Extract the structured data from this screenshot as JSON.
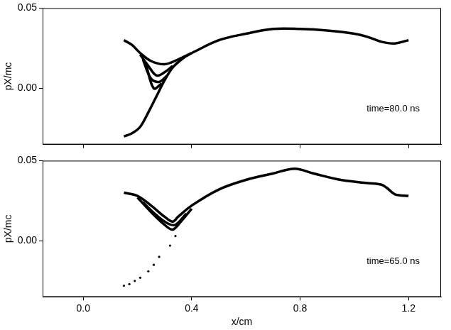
{
  "chart_data": [
    {
      "type": "scatter",
      "y_label": "pX/mc",
      "annotation": "time=80.0 ns",
      "xlim": [
        -0.15,
        1.32
      ],
      "xticks": [
        {
          "value": 0,
          "label": "0.0"
        },
        {
          "value": 0.4,
          "label": "0.4"
        },
        {
          "value": 0.8,
          "label": "0.8"
        },
        {
          "value": 1.2,
          "label": "1.2"
        }
      ],
      "ylim": [
        -0.035,
        0.05
      ],
      "yticks": [
        {
          "value": 0,
          "label": "0.00"
        },
        {
          "value": 0.05,
          "label": "0.05"
        }
      ],
      "grid": false,
      "tick_labels": "y",
      "series": [
        {
          "color": "#000000",
          "marker": "none",
          "line_style": "solid",
          "x": [
            0.15,
            0.18,
            0.21,
            0.25,
            0.3,
            0.35,
            0.4
          ],
          "values": [
            0.03,
            0.027,
            0.022,
            0.017,
            0.015,
            0.018,
            0.022
          ]
        },
        {
          "color": "#000000",
          "marker": "none",
          "line_style": "solid",
          "x": [
            0.15,
            0.18,
            0.21,
            0.24,
            0.27,
            0.3,
            0.33,
            0.37,
            0.4
          ],
          "values": [
            -0.03,
            -0.028,
            -0.024,
            -0.015,
            -0.005,
            0.005,
            0.013,
            0.019,
            0.022
          ]
        },
        {
          "color": "#000000",
          "marker": "none",
          "line_style": "solid",
          "x": [
            0.21,
            0.24,
            0.27,
            0.3,
            0.33
          ],
          "values": [
            0.021,
            0.014,
            0.008,
            0.01,
            0.014
          ]
        },
        {
          "color": "#000000",
          "marker": "none",
          "line_style": "solid",
          "x": [
            0.22,
            0.25,
            0.28,
            0.31
          ],
          "values": [
            0.018,
            0.006,
            0.004,
            0.008
          ]
        },
        {
          "color": "#000000",
          "marker": "none",
          "line_style": "solid",
          "x": [
            0.23,
            0.26,
            0.29
          ],
          "values": [
            0.016,
            0.0,
            0.003
          ]
        },
        {
          "color": "#000000",
          "marker": "none",
          "line_style": "solid",
          "x": [
            0.4,
            0.5,
            0.6,
            0.7,
            0.8,
            0.9,
            1.0,
            1.05,
            1.1,
            1.15,
            1.2
          ],
          "values": [
            0.022,
            0.03,
            0.034,
            0.037,
            0.037,
            0.036,
            0.034,
            0.032,
            0.029,
            0.028,
            0.03
          ]
        }
      ]
    },
    {
      "type": "scatter",
      "x_label": "x/cm",
      "y_label": "pX/mc",
      "annotation": "time=65.0 ns",
      "xlim": [
        -0.15,
        1.32
      ],
      "xticks": [
        {
          "value": 0,
          "label": "0.0"
        },
        {
          "value": 0.4,
          "label": "0.4"
        },
        {
          "value": 0.8,
          "label": "0.8"
        },
        {
          "value": 1.2,
          "label": "1.2"
        }
      ],
      "ylim": [
        -0.035,
        0.05
      ],
      "yticks": [
        {
          "value": 0,
          "label": "0.00"
        },
        {
          "value": 0.05,
          "label": "0.05"
        }
      ],
      "grid": false,
      "series": [
        {
          "color": "#000000",
          "marker": "none",
          "line_style": "solid",
          "x": [
            0.15,
            0.2,
            0.25,
            0.3,
            0.33,
            0.35,
            0.4,
            0.5,
            0.6,
            0.7,
            0.78,
            0.85,
            0.95,
            1.05,
            1.1,
            1.12,
            1.15,
            1.2
          ],
          "values": [
            0.03,
            0.028,
            0.022,
            0.015,
            0.012,
            0.015,
            0.022,
            0.032,
            0.038,
            0.042,
            0.045,
            0.042,
            0.038,
            0.036,
            0.035,
            0.033,
            0.029,
            0.028
          ]
        },
        {
          "color": "#000000",
          "marker": "none",
          "line_style": "solid",
          "x": [
            0.2,
            0.25,
            0.3,
            0.33,
            0.36,
            0.4
          ],
          "values": [
            0.027,
            0.018,
            0.01,
            0.007,
            0.012,
            0.02
          ]
        },
        {
          "color": "#000000",
          "marker": "none",
          "line_style": "solid",
          "x": [
            0.22,
            0.27,
            0.31,
            0.34,
            0.38
          ],
          "values": [
            0.024,
            0.016,
            0.011,
            0.01,
            0.017
          ]
        },
        {
          "color": "#000000",
          "marker": "dot",
          "line_style": "none",
          "x": [
            0.15,
            0.17,
            0.19,
            0.21,
            0.24,
            0.26,
            0.28,
            0.32,
            0.34
          ],
          "values": [
            -0.028,
            -0.027,
            -0.025,
            -0.023,
            -0.019,
            -0.015,
            -0.01,
            -0.003,
            0.003
          ]
        }
      ]
    }
  ]
}
